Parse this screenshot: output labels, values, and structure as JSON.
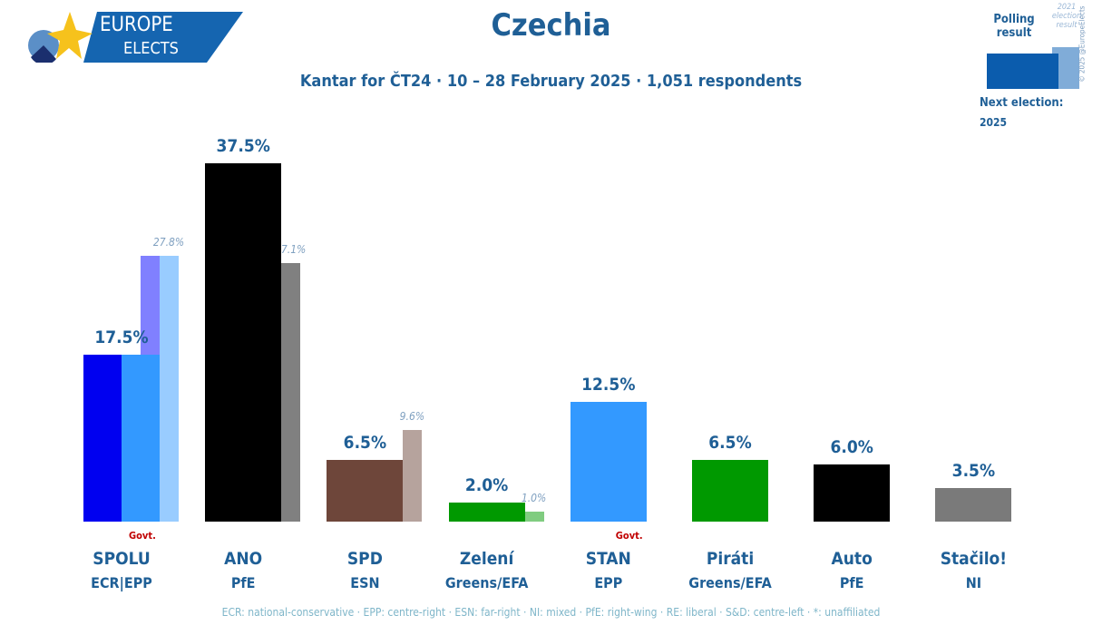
{
  "logo": {
    "line1": "EUROPE",
    "line2": "ELECTS"
  },
  "header": {
    "title": "Czechia",
    "subtitle": "Kantar for ČT24 · 10 – 28 February 2025 · 1,051 respondents"
  },
  "legend": {
    "polling": "Polling result",
    "previous": "2021 election result",
    "copyright": "© 2025 @EuropeElects",
    "next_election_label": "Next election:",
    "next_election_year": "2025",
    "poll_color": "#0b5cad",
    "prev_color": "#80acd8"
  },
  "footer": "ECR: national-conservative · EPP: centre-right · ESN: far-right · NI: mixed · PfE: right-wing · RE: liberal · S&D: centre-left · *: unaffiliated",
  "chart_data": {
    "type": "bar",
    "title": "Czechia",
    "ylim": [
      0,
      40
    ],
    "categories": [
      "SPOLU",
      "ANO",
      "SPD",
      "Zelení",
      "STAN",
      "Piráti",
      "Auto",
      "Stačilo!"
    ],
    "groups": [
      "ECR|EPP",
      "PfE",
      "ESN",
      "Greens/EFA",
      "EPP",
      "Greens/EFA",
      "PfE",
      "NI"
    ],
    "govt": [
      true,
      false,
      false,
      false,
      true,
      false,
      false,
      false
    ],
    "govt_label": "Govt.",
    "series": [
      {
        "name": "Polling result",
        "values": [
          17.5,
          37.5,
          6.5,
          2.0,
          12.5,
          6.5,
          6.0,
          3.5
        ],
        "labels": [
          "17.5%",
          "37.5%",
          "6.5%",
          "2.0%",
          "12.5%",
          "6.5%",
          "6.0%",
          "3.5%"
        ],
        "colors": [
          [
            "#0000f0",
            "#3399ff"
          ],
          [
            "#000000"
          ],
          [
            "#6e463a"
          ],
          [
            "#009900"
          ],
          [
            "#3399ff"
          ],
          [
            "#009900"
          ],
          [
            "#000000"
          ],
          [
            "#7a7a7a"
          ]
        ]
      },
      {
        "name": "2021 election result",
        "values": [
          27.8,
          27.1,
          9.6,
          1.0,
          null,
          null,
          null,
          null
        ],
        "labels": [
          "27.8%",
          "27.1%",
          "9.6%",
          "1.0%",
          null,
          null,
          null,
          null
        ],
        "colors": [
          [
            "#8080ff",
            "#99ccff"
          ],
          [
            "#808080"
          ],
          [
            "#b6a39d"
          ],
          [
            "#80cc80"
          ],
          null,
          null,
          null,
          null
        ]
      }
    ]
  }
}
